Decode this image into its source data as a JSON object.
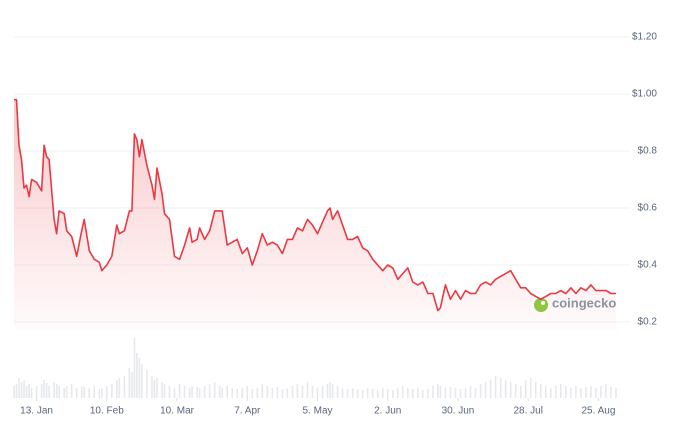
{
  "chart_data": {
    "type": "line",
    "color": "#ea3943",
    "volume_color": "#e6e8ec",
    "watermark": "coingecko",
    "xlim": [
      "01-04",
      "09-01"
    ],
    "ylim": [
      0.2,
      1.2
    ],
    "grid": true,
    "yticks": [
      {
        "value": 0.2,
        "label": "$0.2"
      },
      {
        "value": 0.4,
        "label": "$0.4"
      },
      {
        "value": 0.6,
        "label": "$0.6"
      },
      {
        "value": 0.8,
        "label": "$0.8"
      },
      {
        "value": 1.0,
        "label": "$1.00"
      },
      {
        "value": 1.2,
        "label": "$1.20"
      }
    ],
    "xticks": [
      {
        "value": "01-13",
        "label": "13. Jan"
      },
      {
        "value": "02-10",
        "label": "10. Feb"
      },
      {
        "value": "03-10",
        "label": "10. Mar"
      },
      {
        "value": "04-07",
        "label": "7. Apr"
      },
      {
        "value": "05-05",
        "label": "5. May"
      },
      {
        "value": "06-02",
        "label": "2. Jun"
      },
      {
        "value": "06-30",
        "label": "30. Jun"
      },
      {
        "value": "07-28",
        "label": "28. Jul"
      },
      {
        "value": "08-25",
        "label": "25. Aug"
      }
    ],
    "x": [
      "01-04",
      "01-05",
      "01-06",
      "01-07",
      "01-08",
      "01-09",
      "01-10",
      "01-11",
      "01-13",
      "01-15",
      "01-16",
      "01-17",
      "01-18",
      "01-20",
      "01-21",
      "01-22",
      "01-24",
      "01-25",
      "01-27",
      "01-29",
      "01-31",
      "02-01",
      "02-03",
      "02-05",
      "02-07",
      "02-08",
      "02-10",
      "02-12",
      "02-14",
      "02-15",
      "02-17",
      "02-19",
      "02-20",
      "02-21",
      "02-22",
      "02-23",
      "02-24",
      "02-26",
      "02-28",
      "03-01",
      "03-02",
      "03-04",
      "03-05",
      "03-07",
      "03-09",
      "03-11",
      "03-13",
      "03-15",
      "03-16",
      "03-18",
      "03-19",
      "03-21",
      "03-23",
      "03-25",
      "03-27",
      "03-28",
      "03-30",
      "04-01",
      "04-03",
      "04-05",
      "04-07",
      "04-09",
      "04-11",
      "04-13",
      "04-15",
      "04-17",
      "04-19",
      "04-21",
      "04-23",
      "04-25",
      "04-27",
      "04-29",
      "05-01",
      "05-03",
      "05-05",
      "05-07",
      "05-09",
      "05-10",
      "05-11",
      "05-13",
      "05-15",
      "05-17",
      "05-19",
      "05-21",
      "05-23",
      "05-25",
      "05-27",
      "05-29",
      "05-31",
      "06-02",
      "06-04",
      "06-06",
      "06-08",
      "06-10",
      "06-12",
      "06-14",
      "06-16",
      "06-18",
      "06-20",
      "06-22",
      "06-23",
      "06-25",
      "06-27",
      "06-29",
      "07-01",
      "07-03",
      "07-05",
      "07-07",
      "07-09",
      "07-11",
      "07-13",
      "07-15",
      "07-17",
      "07-19",
      "07-21",
      "07-23",
      "07-25",
      "07-27",
      "07-29",
      "07-31",
      "08-02",
      "08-04",
      "08-06",
      "08-08",
      "08-10",
      "08-12",
      "08-14",
      "08-16",
      "08-18",
      "08-20",
      "08-22",
      "08-24",
      "08-26",
      "08-28",
      "08-30",
      "09-01"
    ],
    "values": [
      0.98,
      0.98,
      0.82,
      0.77,
      0.67,
      0.68,
      0.64,
      0.7,
      0.69,
      0.66,
      0.82,
      0.78,
      0.77,
      0.56,
      0.51,
      0.59,
      0.58,
      0.52,
      0.5,
      0.43,
      0.52,
      0.56,
      0.45,
      0.42,
      0.41,
      0.38,
      0.4,
      0.43,
      0.54,
      0.51,
      0.52,
      0.59,
      0.59,
      0.86,
      0.84,
      0.78,
      0.84,
      0.75,
      0.68,
      0.63,
      0.74,
      0.65,
      0.58,
      0.56,
      0.43,
      0.42,
      0.47,
      0.53,
      0.48,
      0.49,
      0.53,
      0.49,
      0.52,
      0.59,
      0.59,
      0.59,
      0.47,
      0.48,
      0.49,
      0.44,
      0.46,
      0.4,
      0.45,
      0.51,
      0.47,
      0.48,
      0.47,
      0.44,
      0.49,
      0.49,
      0.53,
      0.52,
      0.56,
      0.54,
      0.51,
      0.55,
      0.59,
      0.6,
      0.56,
      0.59,
      0.54,
      0.49,
      0.49,
      0.5,
      0.46,
      0.45,
      0.42,
      0.4,
      0.38,
      0.4,
      0.39,
      0.35,
      0.37,
      0.39,
      0.34,
      0.33,
      0.34,
      0.3,
      0.3,
      0.24,
      0.25,
      0.33,
      0.28,
      0.31,
      0.28,
      0.31,
      0.3,
      0.3,
      0.33,
      0.34,
      0.33,
      0.35,
      0.36,
      0.37,
      0.38,
      0.35,
      0.32,
      0.32,
      0.3,
      0.29,
      0.28,
      0.29,
      0.3,
      0.3,
      0.31,
      0.3,
      0.32,
      0.3,
      0.32,
      0.31,
      0.33,
      0.31,
      0.31,
      0.31,
      0.3,
      0.3
    ],
    "volume": [
      12,
      14,
      20,
      16,
      18,
      12,
      14,
      10,
      12,
      14,
      18,
      15,
      12,
      16,
      14,
      12,
      10,
      12,
      14,
      10,
      12,
      11,
      10,
      12,
      9,
      10,
      12,
      14,
      18,
      20,
      22,
      30,
      26,
      60,
      45,
      40,
      34,
      28,
      22,
      18,
      20,
      16,
      14,
      12,
      10,
      14,
      12,
      10,
      12,
      11,
      10,
      12,
      14,
      16,
      12,
      10,
      12,
      10,
      9,
      10,
      12,
      9,
      10,
      14,
      12,
      10,
      11,
      9,
      10,
      12,
      14,
      12,
      16,
      12,
      10,
      12,
      14,
      16,
      14,
      12,
      10,
      9,
      10,
      9,
      8,
      10,
      9,
      8,
      10,
      9,
      8,
      10,
      12,
      10,
      9,
      10,
      8,
      9,
      12,
      14,
      12,
      10,
      11,
      10,
      9,
      10,
      12,
      10,
      14,
      16,
      18,
      22,
      20,
      18,
      16,
      14,
      12,
      18,
      20,
      16,
      14,
      12,
      10,
      12,
      14,
      12,
      10,
      12,
      10,
      11,
      12,
      10,
      12,
      14,
      11,
      10
    ]
  }
}
